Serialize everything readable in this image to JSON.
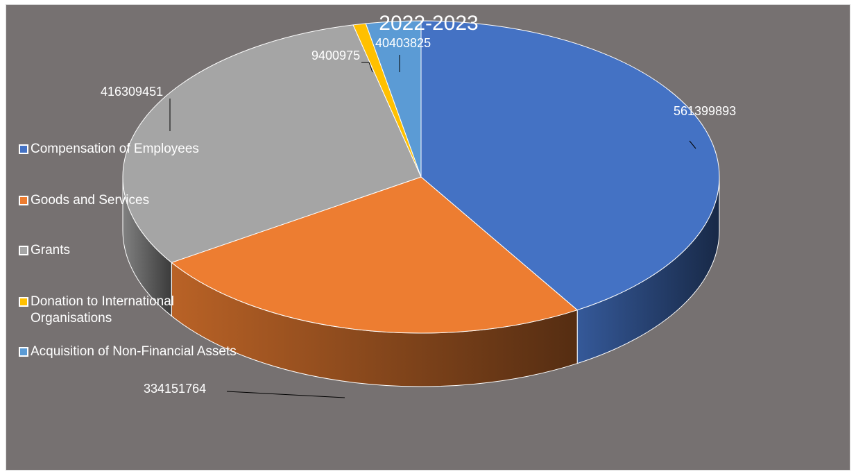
{
  "chart_data": {
    "type": "pie",
    "title": "2022-2023",
    "categories": [
      "Compensation of Employees",
      "Goods and Services",
      "Grants",
      "Donation to International Organisations",
      "Acquisition of Non-Financial Assets"
    ],
    "values": [
      561399893,
      334151764,
      416309451,
      9400975,
      40403825
    ],
    "data_labels": [
      "561399893",
      "334151764",
      "416309451",
      "9400975",
      "40403825"
    ],
    "colors": [
      "#4472C4",
      "#ED7D31",
      "#A5A5A5",
      "#FFC000",
      "#5B9BD5"
    ],
    "legend_position": "left",
    "style": "3d"
  }
}
